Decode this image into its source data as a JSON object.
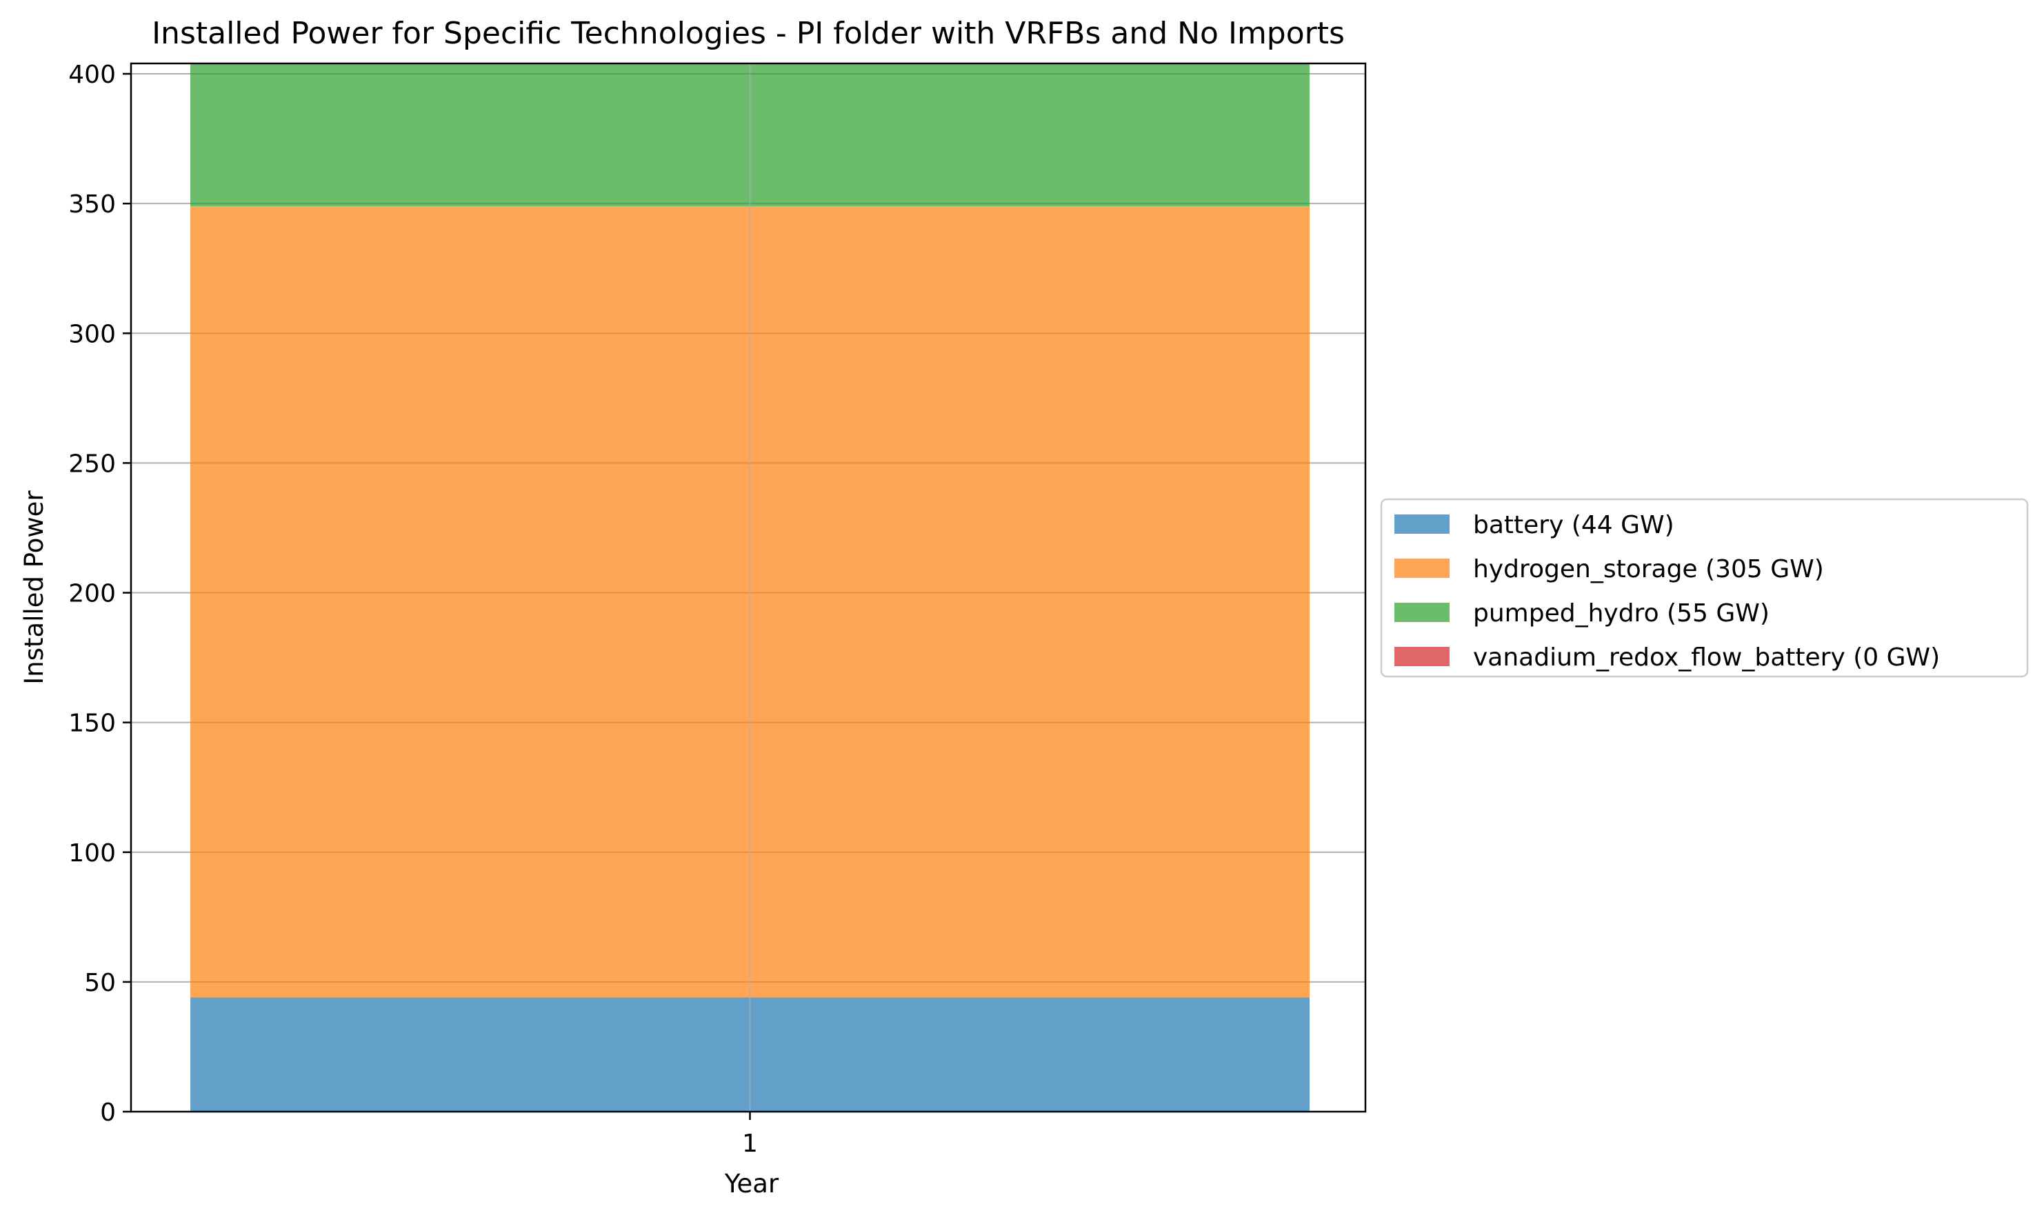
{
  "chart_data": {
    "type": "bar",
    "stacked": true,
    "title": "Installed Power for Specific Technologies - PI folder with VRFBs and No Imports",
    "xlabel": "Year",
    "ylabel": "Installed Power",
    "categories": [
      "1"
    ],
    "series": [
      {
        "name": "battery",
        "legend_label": "battery (44 GW)",
        "values": [
          44
        ],
        "color": "#1f77b4"
      },
      {
        "name": "hydrogen_storage",
        "legend_label": "hydrogen_storage (305 GW)",
        "values": [
          305
        ],
        "color": "#ff7f0e"
      },
      {
        "name": "pumped_hydro",
        "legend_label": "pumped_hydro (55 GW)",
        "values": [
          55
        ],
        "color": "#2ca02c"
      },
      {
        "name": "vanadium_redox_flow_battery",
        "legend_label": "vanadium_redox_flow_battery (0 GW)",
        "values": [
          0
        ],
        "color": "#d62728"
      }
    ],
    "bar_opacity": 0.7,
    "ylim": [
      0,
      404
    ],
    "yticks": [
      0,
      50,
      100,
      150,
      200,
      250,
      300,
      350,
      400
    ],
    "grid": true,
    "legend_position": "center-right, outside plot"
  }
}
